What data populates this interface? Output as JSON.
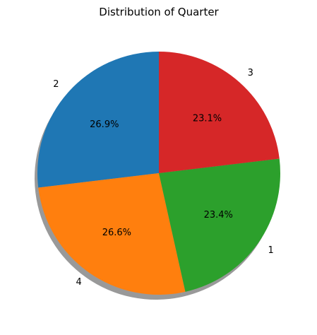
{
  "chart_data": {
    "type": "pie",
    "title": "Distribution of Quarter",
    "slices": [
      {
        "label": "2",
        "value": 26.9,
        "pct_label": "26.9%",
        "color": "#1f77b4"
      },
      {
        "label": "4",
        "value": 26.6,
        "pct_label": "26.6%",
        "color": "#ff7f0e"
      },
      {
        "label": "1",
        "value": 23.4,
        "pct_label": "23.4%",
        "color": "#2ca02c"
      },
      {
        "label": "3",
        "value": 23.1,
        "pct_label": "23.1%",
        "color": "#d62728"
      }
    ],
    "start_angle_deg": 90,
    "direction": "counterclockwise",
    "shadow": true,
    "legend": "none"
  }
}
